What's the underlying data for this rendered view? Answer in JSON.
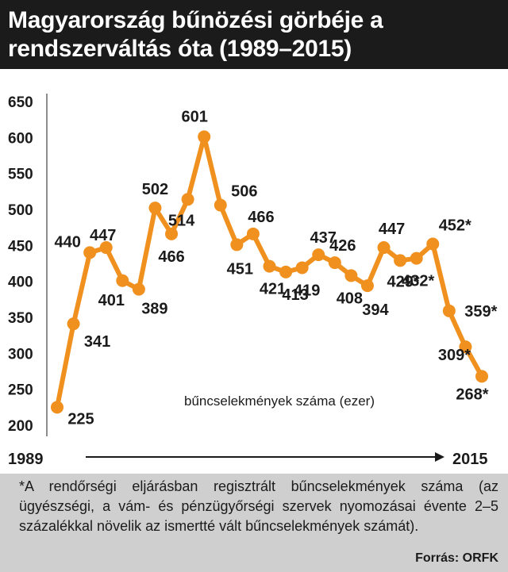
{
  "title": {
    "line1": "Magyarország bűnözési görbéje a",
    "line2": "rendszerváltás óta (1989–2015)"
  },
  "colors": {
    "line": "#f0901e",
    "title_bg": "#1b1b1b",
    "footnote_bg": "#cfcfcf",
    "text": "#1b1b1b"
  },
  "chart_data": {
    "type": "line",
    "title": "Magyarország bűnözési görbéje a rendszerváltás óta (1989–2015)",
    "ylabel": "bűncselekmények száma (ezer)",
    "ylim": [
      200,
      650
    ],
    "y_ticks": [
      200,
      250,
      300,
      350,
      400,
      450,
      500,
      550,
      600,
      650
    ],
    "grid": false,
    "x_start_label": "1989",
    "x_end_label": "2015",
    "x": [
      1989,
      1990,
      1991,
      1992,
      1993,
      1994,
      1995,
      1996,
      1997,
      1998,
      1999,
      2000,
      2001,
      2002,
      2003,
      2004,
      2005,
      2006,
      2007,
      2008,
      2009,
      2010,
      2011,
      2012,
      2013,
      2014,
      2015
    ],
    "values": [
      225,
      341,
      440,
      447,
      401,
      389,
      502,
      466,
      514,
      601,
      506,
      451,
      466,
      421,
      413,
      419,
      437,
      426,
      408,
      394,
      447,
      429,
      432,
      452,
      359,
      309,
      268
    ],
    "point_labels": [
      "225",
      "341",
      "440",
      "447",
      "401",
      "389",
      "502",
      "466",
      "514",
      "601",
      "506",
      "451",
      "466",
      "421",
      "413",
      "419",
      "437",
      "426",
      "408",
      "394",
      "447",
      "429*",
      "432*",
      "452*",
      "359*",
      "309*",
      "268*"
    ]
  },
  "footnote": {
    "text": "*A rendőrségi eljárásban regisztrált bűncselekmények száma (az ügyészségi, a vám- és pénzügyőrségi szervek nyomozásai évente 2–5 százalékkal növelik az ismertté vált bűncselekmények számát).",
    "source": "Forrás: ORFK"
  }
}
